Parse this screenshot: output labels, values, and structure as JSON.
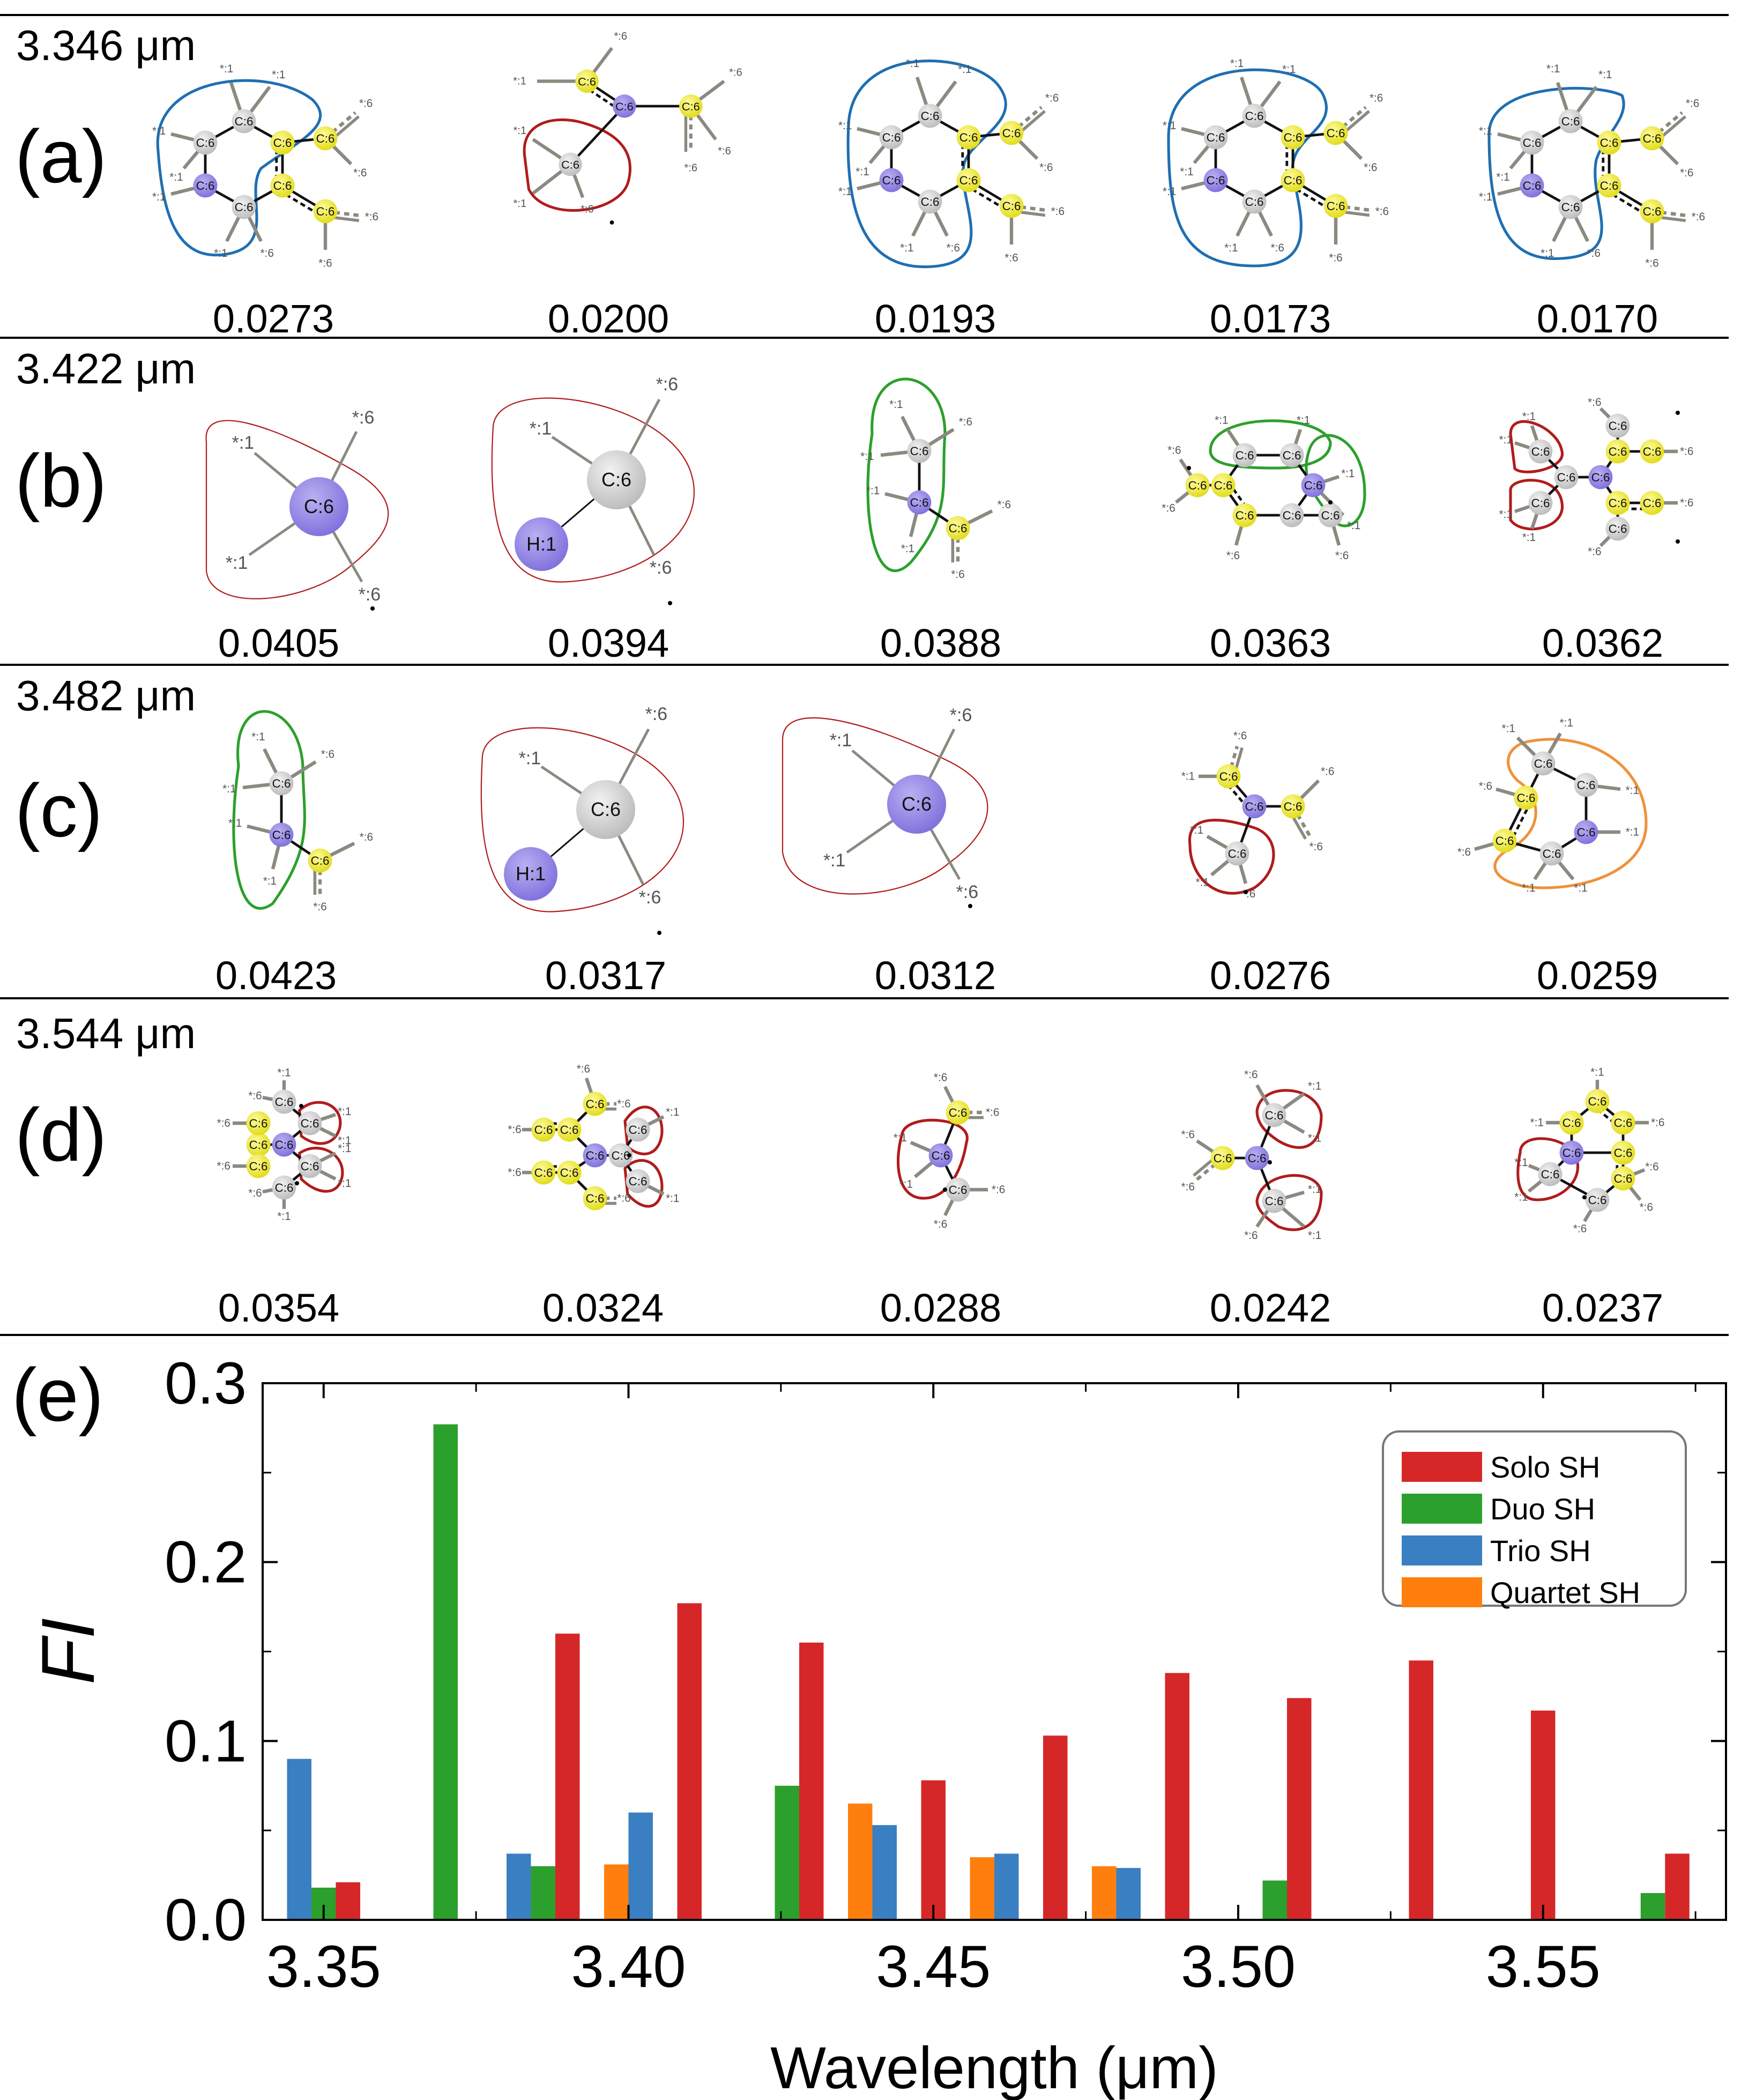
{
  "colors": {
    "solo": "#d62728",
    "duo": "#2ca02c",
    "trio": "#3a7fc1",
    "quartet": "#ff7f0e",
    "outline_red": "#b01c1c",
    "outline_blue": "#1f6fb2",
    "outline_green": "#2ca02c",
    "outline_orange": "#f0913a",
    "atom_gray": "#d0d0d0",
    "atom_yellow": "#f2ee3a",
    "atom_purple": "#9b8fe6",
    "bond_gray": "#8a8a80"
  },
  "panels": [
    {
      "wavelength": "3.346 μm",
      "label": "(a)",
      "values": [
        "0.0273",
        "0.0200",
        "0.0193",
        "0.0173",
        "0.0170"
      ]
    },
    {
      "wavelength": "3.422 μm",
      "label": "(b)",
      "values": [
        "0.0405",
        "0.0394",
        "0.0388",
        "0.0363",
        "0.0362"
      ]
    },
    {
      "wavelength": "3.482 μm",
      "label": "(c)",
      "values": [
        "0.0423",
        "0.0317",
        "0.0312",
        "0.0276",
        "0.0259"
      ]
    },
    {
      "wavelength": "3.544 μm",
      "label": "(d)",
      "values": [
        "0.0354",
        "0.0324",
        "0.0288",
        "0.0242",
        "0.0237"
      ]
    }
  ],
  "atom_labels": {
    "c6": "C:6",
    "h1": "H:1",
    "star1": "*:1",
    "star6": "*:6"
  },
  "chart_data": {
    "type": "bar",
    "panel_label": "(e)",
    "xlabel": "Wavelength (μm)",
    "ylabel": "FI",
    "xlim": [
      3.34,
      3.58
    ],
    "ylim": [
      0.0,
      0.3
    ],
    "xticks": [
      "3.35",
      "3.40",
      "3.45",
      "3.50",
      "3.55"
    ],
    "yticks": [
      "0.0",
      "0.1",
      "0.2",
      "0.3"
    ],
    "legend_position": "top-right",
    "series": [
      {
        "name": "Solo SH",
        "color": "#d62728",
        "points": [
          [
            3.354,
            0.021
          ],
          [
            3.39,
            0.16
          ],
          [
            3.41,
            0.177
          ],
          [
            3.43,
            0.155
          ],
          [
            3.45,
            0.078
          ],
          [
            3.47,
            0.103
          ],
          [
            3.49,
            0.138
          ],
          [
            3.51,
            0.124
          ],
          [
            3.53,
            0.145
          ],
          [
            3.55,
            0.117
          ],
          [
            3.572,
            0.037
          ]
        ]
      },
      {
        "name": "Duo SH",
        "color": "#2ca02c",
        "points": [
          [
            3.35,
            0.018
          ],
          [
            3.37,
            0.277
          ],
          [
            3.386,
            0.03
          ],
          [
            3.426,
            0.075
          ],
          [
            3.506,
            0.022
          ],
          [
            3.568,
            0.015
          ]
        ]
      },
      {
        "name": "Trio SH",
        "color": "#3a7fc1",
        "points": [
          [
            3.346,
            0.09
          ],
          [
            3.382,
            0.037
          ],
          [
            3.402,
            0.06
          ],
          [
            3.442,
            0.053
          ],
          [
            3.462,
            0.037
          ],
          [
            3.482,
            0.029
          ]
        ]
      },
      {
        "name": "Quartet SH",
        "color": "#ff7f0e",
        "points": [
          [
            3.398,
            0.031
          ],
          [
            3.438,
            0.065
          ],
          [
            3.458,
            0.035
          ],
          [
            3.478,
            0.03
          ]
        ]
      }
    ]
  }
}
